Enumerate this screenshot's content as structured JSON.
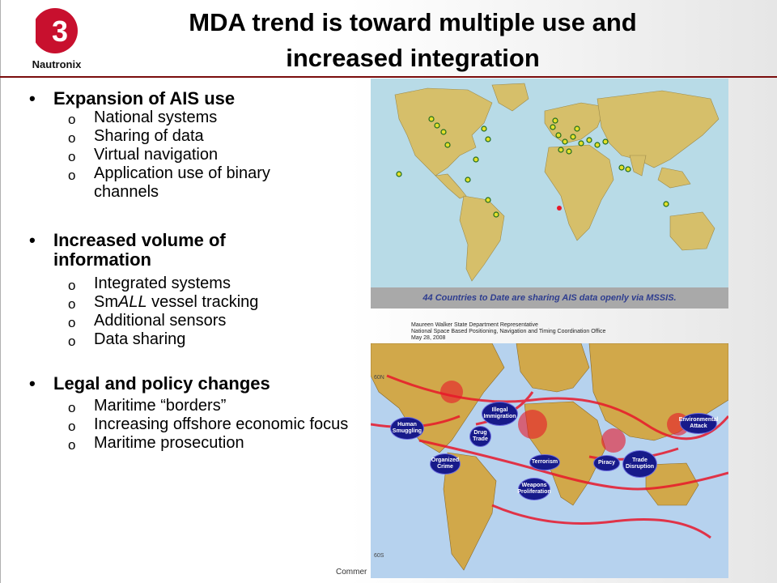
{
  "title": {
    "line1": "MDA trend is toward multiple use and",
    "line2": "increased integration"
  },
  "logo": {
    "mark": "L3",
    "text": "Nautronix"
  },
  "sections": [
    {
      "heading": "Expansion of AIS use",
      "items": [
        "National systems",
        "Sharing of data",
        "Virtual navigation",
        "Application use of binary channels"
      ]
    },
    {
      "heading": "Increased volume of information",
      "items": [
        "Integrated systems",
        "SmALL vessel tracking",
        "Additional sensors",
        "Data sharing"
      ]
    },
    {
      "heading": "Legal and policy changes",
      "items": [
        "Maritime “borders”",
        "Increasing offshore economic focus",
        "Maritime prosecution"
      ]
    }
  ],
  "sub_marker": "o",
  "smal_item": {
    "prefix": "Sm",
    "italic": "ALL",
    "suffix": " vessel tracking"
  },
  "top_map": {
    "caption": "44 Countries to Date are sharing AIS data openly via MSSIS."
  },
  "credit": {
    "line1": "Maureen  Walker State Department  Representative",
    "line2": "National  Space  Based Positioning, Navigation  and Timing Coordination  Office",
    "line3": "May  28, 2008"
  },
  "bottom_map": {
    "lat_labels": [
      "60N",
      "60S"
    ],
    "threats": [
      {
        "id": "human-smuggling",
        "label": "Human Smuggling"
      },
      {
        "id": "illegal-immigration",
        "label": "Illegal Immigration"
      },
      {
        "id": "drug-trade",
        "label": "Drug Trade"
      },
      {
        "id": "organized-crime",
        "label": "Organized Crime"
      },
      {
        "id": "terrorism",
        "label": "Terrorism"
      },
      {
        "id": "weapons-proliferation",
        "label": "Weapons Proliferation"
      },
      {
        "id": "piracy",
        "label": "Piracy"
      },
      {
        "id": "trade-disruption",
        "label": "Trade Disruption"
      },
      {
        "id": "environmental-attack",
        "label": "Environmental Attack"
      }
    ]
  },
  "footer": "Commer",
  "colors": {
    "title_rule": "#7a0c0c",
    "logo_red": "#c8102e",
    "land": "#d6bf6a",
    "ocean": "#b8dbe7",
    "track_red": "#e8182a",
    "oval_blue": "#171a8a"
  }
}
